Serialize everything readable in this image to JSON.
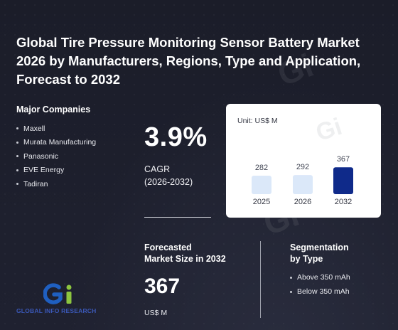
{
  "title": "Global Tire Pressure Monitoring Sensor Battery Market 2026 by Manufacturers, Regions, Type and Application, Forecast to 2032",
  "companies": {
    "heading": "Major Companies",
    "items": [
      "Maxell",
      "Murata Manufacturing",
      "Panasonic",
      "EVE Energy",
      "Tadiran"
    ]
  },
  "cagr": {
    "value": "3.9%",
    "label_line1": "CAGR",
    "label_line2": "(2026-2032)"
  },
  "chart": {
    "unit": "Unit: US$ M"
  },
  "chart_data": {
    "type": "bar",
    "categories": [
      "2025",
      "2026",
      "2032"
    ],
    "values": [
      282,
      292,
      367
    ],
    "value_labels": [
      "282",
      "292",
      "367"
    ],
    "ylim": [
      0,
      380
    ],
    "colors": [
      "#dbe8f9",
      "#dbe8f9",
      "#0f2a8a"
    ],
    "grid": false
  },
  "forecast": {
    "label_line1": "Forecasted",
    "label_line2": "Market Size in 2032",
    "value": "367",
    "unit": "US$ M"
  },
  "segmentation": {
    "heading_line1": "Segmentation",
    "heading_line2": "by Type",
    "items": [
      "Above 350 mAh",
      "Below 350 mAh"
    ]
  },
  "logo": {
    "text": "GLOBAL INFO RESEARCH",
    "icon": "gi-logo-icon",
    "colors": {
      "g": "#1f5fc0",
      "i": "#8dc63f",
      "text": "#3b58b8"
    }
  }
}
